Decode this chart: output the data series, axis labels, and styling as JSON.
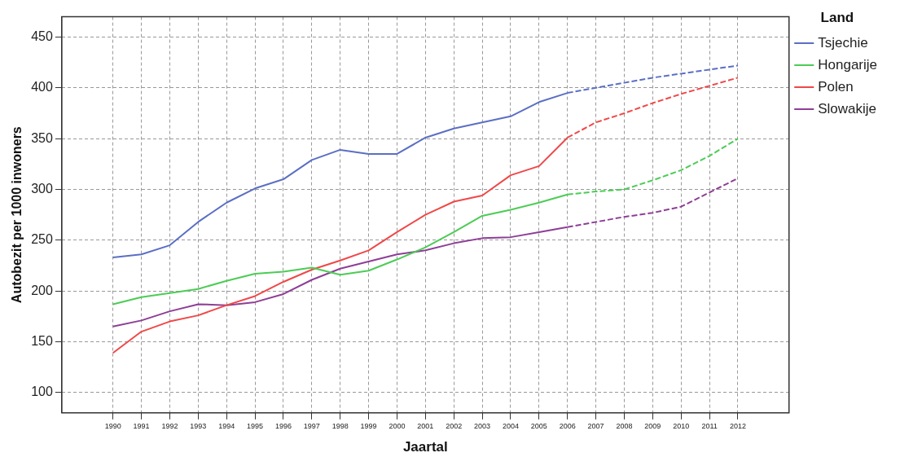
{
  "chart_data": {
    "type": "line",
    "xlabel": "Jaartal",
    "ylabel": "Autobezit per 1000 inwoners",
    "legend_title": "Land",
    "legend": "top right",
    "grid": true,
    "marker": "none",
    "line_style": "solid",
    "x": [
      1990,
      1991,
      1992,
      1993,
      1994,
      1995,
      1996,
      1997,
      1998,
      1999,
      2000,
      2001,
      2002,
      2003,
      2004,
      2005,
      2006
    ],
    "xlim": [
      1988.2,
      2013.8
    ],
    "xticks": [
      1990,
      1991,
      1992,
      1993,
      1994,
      1995,
      1996,
      1997,
      1998,
      1999,
      2000,
      2001,
      2002,
      2003,
      2004,
      2005,
      2006,
      2007,
      2008,
      2009,
      2010,
      2011,
      2012
    ],
    "ylim": [
      80,
      470
    ],
    "yticks": [
      100,
      150,
      200,
      250,
      300,
      350,
      400,
      450
    ],
    "series": [
      {
        "name": "Tsjechie",
        "color": "#5b6fc4",
        "values": [
          233,
          236,
          245,
          268,
          287,
          301,
          310,
          329,
          339,
          335,
          335,
          351,
          360,
          366,
          372,
          386,
          395
        ]
      },
      {
        "name": "Hongarije",
        "color": "#4ccc55",
        "values": [
          187,
          194,
          198,
          202,
          210,
          217,
          219,
          223,
          216,
          220,
          231,
          243,
          258,
          274,
          280,
          287,
          295
        ]
      },
      {
        "name": "Polen",
        "color": "#f04848",
        "values": [
          139,
          160,
          170,
          176,
          186,
          195,
          209,
          221,
          230,
          240,
          258,
          275,
          288,
          294,
          314,
          323,
          351
        ]
      },
      {
        "name": "Slowakije",
        "color": "#8e3e96",
        "values": [
          165,
          171,
          180,
          187,
          186,
          189,
          197,
          211,
          222,
          229,
          236,
          240,
          247,
          252,
          253,
          258,
          263
        ]
      },
      {
        "color": "#5b6fc4",
        "line_style": "dashed",
        "x": [
          2006,
          2007,
          2008,
          2009,
          2010,
          2011,
          2012
        ],
        "values": [
          395,
          400,
          405,
          410,
          414,
          418,
          422
        ]
      },
      {
        "color": "#4ccc55",
        "line_style": "dashed",
        "x": [
          2006,
          2007,
          2008,
          2009,
          2010,
          2011,
          2012
        ],
        "values": [
          295,
          298,
          300,
          309,
          319,
          333,
          350
        ]
      },
      {
        "color": "#f04848",
        "line_style": "dashed",
        "x": [
          2006,
          2007,
          2008,
          2009,
          2010,
          2011,
          2012
        ],
        "values": [
          351,
          366,
          375,
          385,
          394,
          402,
          410
        ]
      },
      {
        "color": "#8e3e96",
        "line_style": "dashed",
        "x": [
          2006,
          2007,
          2008,
          2009,
          2010,
          2011,
          2012
        ],
        "values": [
          263,
          268,
          273,
          277,
          283,
          297,
          311
        ]
      }
    ]
  }
}
